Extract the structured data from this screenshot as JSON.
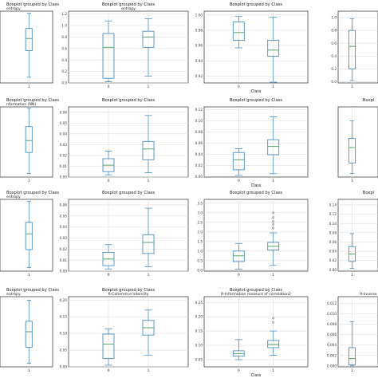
{
  "chart_data": [
    {
      "type": "boxplot",
      "title": "Boxplot grouped by Class",
      "subtitle": "entropy",
      "xlabel": "",
      "categories": [
        "1"
      ],
      "yticks": [],
      "ylim": [
        0,
        1
      ],
      "boxes": [
        {
          "min": 0.08,
          "q1": 0.45,
          "median": 0.62,
          "q3": 0.76,
          "max": 0.97
        }
      ]
    },
    {
      "type": "boxplot",
      "title": "Boxplot grouped by Class",
      "subtitle": "entropy",
      "xlabel": "",
      "categories": [
        "0",
        "1"
      ],
      "yticks": [
        "0.0",
        "0.2",
        "0.4",
        "0.6",
        "0.8",
        "1.0",
        "1.2"
      ],
      "ylim": [
        0,
        1.25
      ],
      "boxes": [
        {
          "min": 0.02,
          "q1": 0.08,
          "median": 0.62,
          "q3": 0.86,
          "max": 1.08
        },
        {
          "min": 0.12,
          "q1": 0.62,
          "median": 0.8,
          "q3": 0.9,
          "max": 1.12
        }
      ]
    },
    {
      "type": "boxplot",
      "title": "Boxplot grouped by Class",
      "subtitle": "",
      "xlabel": "Class",
      "categories": [
        "0",
        "1"
      ],
      "yticks": [
        "0.92",
        "0.94",
        "0.96",
        "0.98",
        "1.00"
      ],
      "ylim": [
        0.911,
        1.005
      ],
      "boxes": [
        {
          "min": 0.957,
          "q1": 0.967,
          "median": 0.977,
          "q3": 0.991,
          "max": 0.998
        },
        {
          "min": 0.912,
          "q1": 0.946,
          "median": 0.954,
          "q3": 0.967,
          "max": 0.997
        }
      ]
    },
    {
      "type": "boxplot",
      "title": "",
      "subtitle": "",
      "xlabel": "",
      "categories": [
        "1"
      ],
      "yticks": [
        "0.0",
        "0.2",
        "0.4",
        "0.6",
        "0.8",
        "1.0"
      ],
      "ylim": [
        -0.02,
        1.1
      ],
      "boxes": [
        {
          "min": 0.02,
          "q1": 0.2,
          "median": 0.55,
          "q3": 0.8,
          "max": 0.98
        }
      ]
    },
    {
      "type": "boxplot",
      "title": "Boxplot grouped by Class",
      "subtitle": "nformation (NN)",
      "xlabel": "",
      "categories": [
        "1"
      ],
      "yticks": [],
      "ylim": [
        0,
        1
      ],
      "boxes": [
        {
          "min": 0.05,
          "q1": 0.35,
          "median": 0.52,
          "q3": 0.72,
          "max": 0.98
        }
      ]
    },
    {
      "type": "boxplot",
      "title": "Boxplot grouped by Class",
      "subtitle": "",
      "xlabel": "",
      "categories": [
        "0",
        "1"
      ],
      "yticks": [
        "0.00",
        "0.01",
        "0.02",
        "0.03",
        "0.04",
        "0.05",
        "0.06"
      ],
      "ylim": [
        0,
        0.065
      ],
      "boxes": [
        {
          "min": 0.002,
          "q1": 0.005,
          "median": 0.011,
          "q3": 0.017,
          "max": 0.024
        },
        {
          "min": 0.004,
          "q1": 0.016,
          "median": 0.026,
          "q3": 0.033,
          "max": 0.057
        }
      ]
    },
    {
      "type": "boxplot",
      "title": "Boxplot grouped by Class",
      "subtitle": "",
      "xlabel": "Class",
      "categories": [
        "0",
        "1"
      ],
      "yticks": [
        "0.00",
        "0.02",
        "0.04",
        "0.06",
        "0.08",
        "0.10",
        "0.12"
      ],
      "ylim": [
        -0.001,
        0.125
      ],
      "boxes": [
        {
          "min": 0.002,
          "q1": 0.012,
          "median": 0.03,
          "q3": 0.043,
          "max": 0.05
        },
        {
          "min": 0.005,
          "q1": 0.039,
          "median": 0.054,
          "q3": 0.066,
          "max": 0.107
        }
      ]
    },
    {
      "type": "boxplot",
      "title": "Boxpl",
      "subtitle": "",
      "xlabel": "",
      "categories": [
        "1"
      ],
      "yticks": [],
      "ylim": [
        0,
        1
      ],
      "boxes": [
        {
          "min": 0.05,
          "q1": 0.2,
          "median": 0.42,
          "q3": 0.55,
          "max": 0.8
        }
      ]
    },
    {
      "type": "boxplot",
      "title": "Boxplot grouped by Class",
      "subtitle": "entropy",
      "xlabel": "",
      "categories": [
        "1"
      ],
      "yticks": [],
      "ylim": [
        0,
        1
      ],
      "boxes": [
        {
          "min": 0.05,
          "q1": 0.3,
          "median": 0.52,
          "q3": 0.68,
          "max": 0.97
        }
      ]
    },
    {
      "type": "boxplot",
      "title": "Boxplot grouped by Class",
      "subtitle": "",
      "xlabel": "",
      "categories": [
        "0",
        "1"
      ],
      "yticks": [
        "0.00",
        "0.01",
        "0.02",
        "0.03",
        "0.04",
        "0.05",
        "0.06"
      ],
      "ylim": [
        0,
        0.065
      ],
      "boxes": [
        {
          "min": 0.002,
          "q1": 0.005,
          "median": 0.011,
          "q3": 0.017,
          "max": 0.024
        },
        {
          "min": 0.004,
          "q1": 0.016,
          "median": 0.026,
          "q3": 0.033,
          "max": 0.057
        }
      ]
    },
    {
      "type": "boxplot",
      "title": "Boxplot grouped by Class",
      "subtitle": "",
      "xlabel": "",
      "categories": [
        "0",
        "1"
      ],
      "yticks": [
        "0.0",
        "0.5",
        "1.0",
        "1.5",
        "2.0",
        "2.5",
        "3.0",
        "3.5"
      ],
      "ylim": [
        -0.05,
        3.7
      ],
      "boxes": [
        {
          "min": 0.05,
          "q1": 0.45,
          "median": 0.75,
          "q3": 1.0,
          "max": 1.4,
          "outliers": []
        },
        {
          "min": 0.25,
          "q1": 1.05,
          "median": 1.25,
          "q3": 1.45,
          "max": 1.95,
          "outliers": [
            2.2,
            2.4,
            2.55,
            2.75,
            3.0
          ]
        }
      ]
    },
    {
      "type": "boxplot",
      "title": "Boxpl",
      "subtitle": "",
      "xlabel": "",
      "categories": [
        "1"
      ],
      "yticks": [
        "0.00",
        "0.02",
        "0.04",
        "0.06",
        "0.08",
        "0.10",
        "0.12",
        "0.14"
      ],
      "ylim": [
        -0.003,
        0.152
      ],
      "boxes": [
        {
          "min": 0.003,
          "q1": 0.018,
          "median": 0.034,
          "q3": 0.05,
          "max": 0.078
        }
      ]
    },
    {
      "type": "boxplot",
      "title": "Boxplot grouped by Class",
      "subtitle": "entropy",
      "xlabel": "",
      "categories": [
        "1"
      ],
      "yticks": [],
      "ylim": [
        0,
        1
      ],
      "boxes": [
        {
          "min": 0.05,
          "q1": 0.28,
          "median": 0.5,
          "q3": 0.65,
          "max": 0.95
        }
      ]
    },
    {
      "type": "boxplot",
      "title": "Boxplot grouped by Class",
      "subtitle": "R-Coherence Intensity",
      "xlabel": "",
      "categories": [
        "0",
        "1"
      ],
      "yticks": [
        "0.00",
        "0.05",
        "0.10",
        "0.15",
        "0.20"
      ],
      "ylim": [
        0,
        0.21
      ],
      "boxes": [
        {
          "min": 0.005,
          "q1": 0.025,
          "median": 0.068,
          "q3": 0.098,
          "max": 0.113
        },
        {
          "min": 0.035,
          "q1": 0.095,
          "median": 0.117,
          "q3": 0.139,
          "max": 0.17
        }
      ]
    },
    {
      "type": "boxplot",
      "title": "Boxplot grouped by Class",
      "subtitle": "R-Information measure of correlation2",
      "xlabel": "Class",
      "categories": [
        "0",
        "1"
      ],
      "yticks": [
        "0.05",
        "0.10",
        "0.15",
        "0.20",
        "0.25"
      ],
      "ylim": [
        0.025,
        0.27
      ],
      "boxes": [
        {
          "min": 0.05,
          "q1": 0.063,
          "median": 0.071,
          "q3": 0.081,
          "max": 0.12,
          "outliers": []
        },
        {
          "min": 0.065,
          "q1": 0.092,
          "median": 0.103,
          "q3": 0.117,
          "max": 0.15,
          "outliers": [
            0.18,
            0.195
          ]
        }
      ]
    },
    {
      "type": "boxplot",
      "title": "",
      "subtitle": "R-Inverse",
      "xlabel": "",
      "categories": [
        "1"
      ],
      "yticks": [
        "0.000",
        "0.002",
        "0.004",
        "0.006",
        "0.008",
        "0.010",
        "0.012"
      ],
      "ylim": [
        -0.0002,
        0.0133
      ],
      "boxes": [
        {
          "min": 0.0,
          "q1": 0.0002,
          "median": 0.0014,
          "q3": 0.0035,
          "max": 0.0085
        }
      ]
    }
  ],
  "colors": {
    "box": "#4e8fbf",
    "median": "#53a86b",
    "axis": "#444444",
    "grid": "#dddddd"
  }
}
